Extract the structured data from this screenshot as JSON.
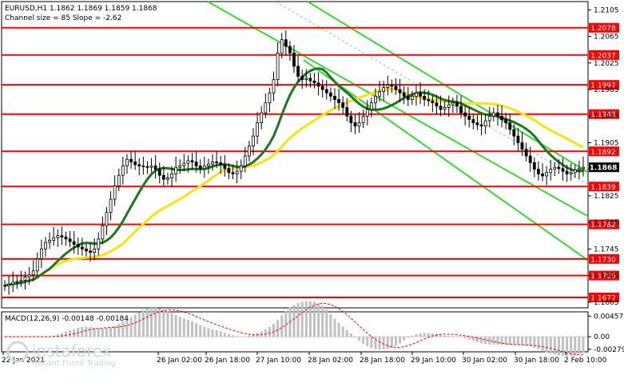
{
  "header": {
    "symbol_line": "EURUSD,H1  1.1862 1.1869 1.1859 1.1868",
    "channel_line": "Channel size = 85 Slope = -2.62"
  },
  "macd_label": "MACD(12,26,9) -0.00148 -0.00184",
  "watermark": {
    "brand": "instaforex",
    "tagline": "Instant Forex Trading"
  },
  "colors": {
    "level_line": "#ff0000",
    "level_tag": "#ff0000",
    "ma_fast": "#1a7a1a",
    "ma_slow": "#f5e50a",
    "channel": "#33dd33",
    "candle": "#000000",
    "macd_hist": "#c0c0c0",
    "macd_signal": "#ff0000",
    "current_price_tag": "#000000"
  },
  "chart_data": {
    "type": "candlestick",
    "symbol": "EURUSD",
    "timeframe": "H1",
    "last_ohlc": {
      "open": 1.1862,
      "high": 1.1869,
      "low": 1.1859,
      "close": 1.1868
    },
    "current_price": "1.1868",
    "y_ticks": [
      "1.2105",
      "1.2065",
      "1.2025",
      "1.1985",
      "1.1945",
      "1.1905",
      "1.1865",
      "1.1825",
      "1.1785",
      "1.1745",
      "1.1705",
      "1.1665"
    ],
    "ylim": [
      1.166,
      1.2115
    ],
    "x_ticks": [
      "22 Jan 2021",
      "26 Jan 02:00",
      "26 Jan 18:00",
      "27 Jan 10:00",
      "28 Jan 02:00",
      "28 Jan 18:00",
      "29 Jan 10:00",
      "30 Jan 02:00",
      "30 Jan 18:00",
      "2 Feb 10:00"
    ],
    "levels": [
      {
        "label": "1.2078",
        "value": 1.2078
      },
      {
        "label": "1.2037",
        "value": 1.2037
      },
      {
        "label": "1.1992",
        "value": 1.1992
      },
      {
        "label": "1.1948",
        "value": 1.1948
      },
      {
        "label": "1.1892",
        "value": 1.1892
      },
      {
        "label": "1.1839",
        "value": 1.1839
      },
      {
        "label": "1.1782",
        "value": 1.1782
      },
      {
        "label": "1.1730",
        "value": 1.173
      },
      {
        "label": "1.1705",
        "value": 1.1705
      },
      {
        "label": "1.1672",
        "value": 1.1672
      }
    ],
    "closes": [
      1.169,
      1.1692,
      1.1695,
      1.1696,
      1.1698,
      1.1703,
      1.1706,
      1.1712,
      1.173,
      1.1745,
      1.1755,
      1.1758,
      1.1762,
      1.1765,
      1.1763,
      1.176,
      1.1756,
      1.1752,
      1.1748,
      1.1745,
      1.1742,
      1.174,
      1.1745,
      1.176,
      1.178,
      1.18,
      1.182,
      1.184,
      1.1856,
      1.187,
      1.188,
      1.1876,
      1.1872,
      1.187,
      1.1869,
      1.1868,
      1.187,
      1.1865,
      1.1856,
      1.185,
      1.1852,
      1.1858,
      1.1868,
      1.187,
      1.1874,
      1.1878,
      1.1876,
      1.187,
      1.1866,
      1.187,
      1.1873,
      1.1876,
      1.1875,
      1.1872,
      1.1866,
      1.186,
      1.1858,
      1.1862,
      1.187,
      1.1885,
      1.19,
      1.1915,
      1.1935,
      1.195,
      1.1965,
      1.198,
      1.2,
      1.204,
      1.206,
      1.205,
      1.204,
      1.202,
      1.2005,
      1.2,
      1.2002,
      1.1998,
      1.1995,
      1.199,
      1.1985,
      1.198,
      1.1975,
      1.197,
      1.1965,
      1.1958,
      1.1945,
      1.1935,
      1.193,
      1.1935,
      1.1945,
      1.1955,
      1.1965,
      1.1975,
      1.1982,
      1.1988,
      1.1992,
      1.199,
      1.1985,
      1.198,
      1.1975,
      1.197,
      1.1975,
      1.198,
      1.1975,
      1.197,
      1.1968,
      1.1965,
      1.196,
      1.1955,
      1.1958,
      1.1962,
      1.1965,
      1.196,
      1.195,
      1.1945,
      1.194,
      1.1935,
      1.1932,
      1.193,
      1.1938,
      1.1945,
      1.195,
      1.1945,
      1.194,
      1.1935,
      1.1925,
      1.1915,
      1.1905,
      1.1895,
      1.1885,
      1.1875,
      1.1865,
      1.1858,
      1.1855,
      1.186,
      1.1865,
      1.1868,
      1.1866,
      1.1862,
      1.1858,
      1.186,
      1.1864,
      1.1866,
      1.1868
    ],
    "macd": {
      "label": "MACD(12,26,9)",
      "main": -0.00148,
      "signal": -0.00184,
      "y_ticks": [
        "0.00457",
        "0.00",
        "-0.00279"
      ],
      "ylim": [
        -0.003,
        0.0048
      ]
    }
  }
}
